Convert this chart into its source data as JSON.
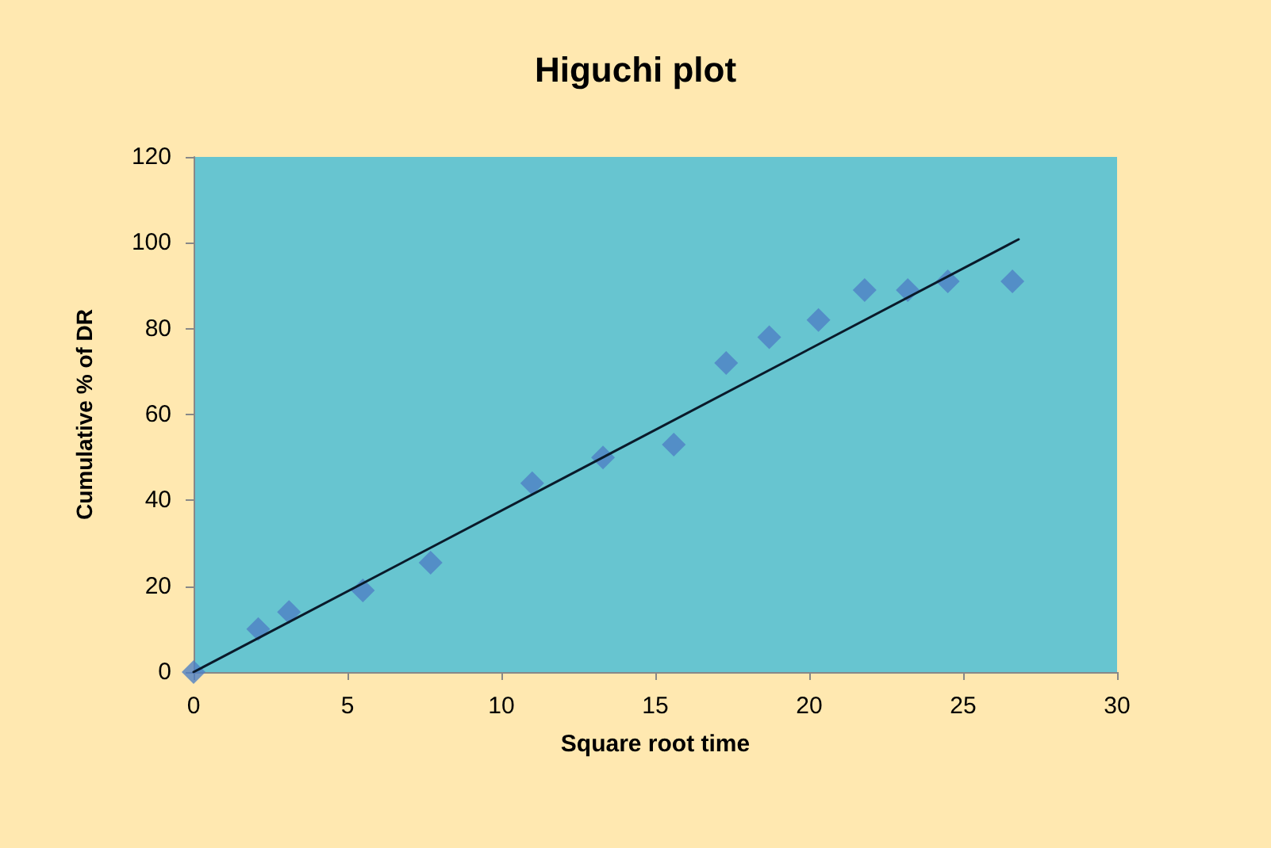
{
  "chart_data": {
    "type": "scatter",
    "title": "Higuchi plot",
    "xlabel": "Square root time",
    "ylabel": "Cumulative % of DR",
    "xlim": [
      0,
      30
    ],
    "xticks": [
      0,
      5,
      10,
      15,
      20,
      25,
      30
    ],
    "ylim": [
      0,
      120
    ],
    "yticks": [
      0,
      20,
      40,
      60,
      80,
      100,
      120
    ],
    "grid": false,
    "marker": "diamond",
    "series": [
      {
        "color": "#4f7fc4",
        "x": [
          0,
          2.1,
          3.1,
          5.5,
          7.7,
          11,
          13.3,
          15.6,
          17.3,
          18.7,
          20.3,
          21.8,
          23.2,
          24.5,
          26.6
        ],
        "values": [
          0,
          10,
          14,
          19,
          25.5,
          44,
          50,
          53,
          72,
          78,
          82,
          89,
          89,
          91,
          91
        ]
      },
      {
        "type": "line",
        "color": "#0a1a2a",
        "marker": "none",
        "line_style": "solid",
        "x": [
          0,
          26.8
        ],
        "values": [
          0,
          100.8
        ]
      }
    ]
  }
}
